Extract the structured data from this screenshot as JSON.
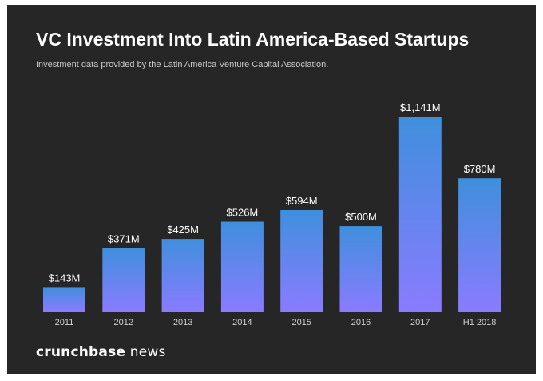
{
  "header": {
    "title": "VC Investment Into Latin America-Based Startups",
    "subtitle": "Investment data provided by the Latin America Venture Capital Association."
  },
  "footer": {
    "brand_bold": "crunchbase",
    "brand_light": " news"
  },
  "colors": {
    "background": "#262626",
    "bar_top": "#3f8fdd",
    "bar_bottom": "#8a7bff",
    "label": "#ffffff",
    "tick": "#cfcfcf"
  },
  "chart_data": {
    "type": "bar",
    "title": "VC Investment Into Latin America-Based Startups",
    "categories": [
      "2011",
      "2012",
      "2013",
      "2014",
      "2015",
      "2016",
      "2017",
      "H1 2018"
    ],
    "values": [
      143,
      371,
      425,
      526,
      594,
      500,
      1141,
      780
    ],
    "data_labels": [
      "$143M",
      "$371M",
      "$425M",
      "$526M",
      "$594M",
      "$500M",
      "$1,141M",
      "$780M"
    ],
    "unit": "$M",
    "xlabel": "",
    "ylabel": "",
    "ylim": [
      0,
      1141
    ],
    "grid": false
  }
}
